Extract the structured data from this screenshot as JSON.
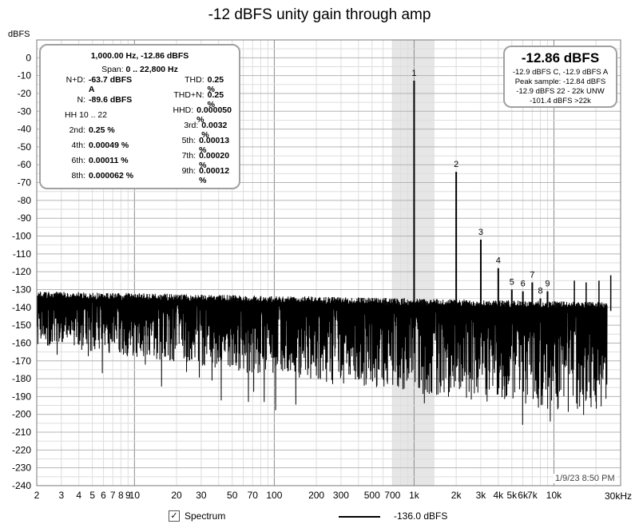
{
  "chart_data": {
    "type": "line",
    "title": "-12 dBFS unity gain through amp",
    "ylabel": "dBFS",
    "xunit": "30kHz",
    "xscale": "log",
    "xlim": [
      2,
      30000
    ],
    "ylim": [
      -240,
      10
    ],
    "grid": true,
    "yticks": [
      0,
      -10,
      -20,
      -30,
      -40,
      -50,
      -60,
      -70,
      -80,
      -90,
      -100,
      -110,
      -120,
      -130,
      -140,
      -150,
      -160,
      -170,
      -180,
      -190,
      -200,
      -210,
      -220,
      -230,
      -240
    ],
    "xticks": [
      {
        "v": 2,
        "label": "2"
      },
      {
        "v": 3,
        "label": "3"
      },
      {
        "v": 4,
        "label": "4"
      },
      {
        "v": 5,
        "label": "5"
      },
      {
        "v": 6,
        "label": "6"
      },
      {
        "v": 7,
        "label": "7"
      },
      {
        "v": 8,
        "label": "8"
      },
      {
        "v": 9,
        "label": "9"
      },
      {
        "v": 10,
        "label": "10"
      },
      {
        "v": 20,
        "label": "20"
      },
      {
        "v": 30,
        "label": "30"
      },
      {
        "v": 50,
        "label": "50"
      },
      {
        "v": 70,
        "label": "70"
      },
      {
        "v": 100,
        "label": "100"
      },
      {
        "v": 200,
        "label": "200"
      },
      {
        "v": 300,
        "label": "300"
      },
      {
        "v": 500,
        "label": "500"
      },
      {
        "v": 700,
        "label": "700"
      },
      {
        "v": 1000,
        "label": "1k"
      },
      {
        "v": 2000,
        "label": "2k"
      },
      {
        "v": 3000,
        "label": "3k"
      },
      {
        "v": 4000,
        "label": "4k"
      },
      {
        "v": 5000,
        "label": "5k"
      },
      {
        "v": 6000,
        "label": "6k"
      },
      {
        "v": 7000,
        "label": "7k"
      },
      {
        "v": 10000,
        "label": "10k"
      }
    ],
    "highlight_band": [
      700,
      1400
    ],
    "harmonics": [
      {
        "n": "1",
        "freq": 1000,
        "db": -12.86
      },
      {
        "n": "2",
        "freq": 2000,
        "db": -64
      },
      {
        "n": "3",
        "freq": 3000,
        "db": -102
      },
      {
        "n": "4",
        "freq": 4000,
        "db": -118
      },
      {
        "n": "5",
        "freq": 5000,
        "db": -130
      },
      {
        "n": "6",
        "freq": 6000,
        "db": -131
      },
      {
        "n": "7",
        "freq": 7000,
        "db": -126
      },
      {
        "n": "8",
        "freq": 8000,
        "db": -135
      },
      {
        "n": "9",
        "freq": 9000,
        "db": -131
      }
    ],
    "spurs": [
      {
        "freq": 14000,
        "db": -125
      },
      {
        "freq": 17000,
        "db": -126
      },
      {
        "freq": 21000,
        "db": -125
      },
      {
        "freq": 25500,
        "db": -122
      }
    ],
    "noise_floor": {
      "low_freq_db": -136,
      "high_freq_db": -142
    }
  },
  "stats": {
    "header": "1,000.00 Hz, -12.86 dBFS",
    "span_label": "Span:",
    "span_value": "0 .. 22,800 Hz",
    "rows": [
      [
        {
          "label": "N+D:",
          "value": "-63.7 dBFS A"
        },
        {
          "label": "THD:",
          "value": "0.25 %"
        }
      ],
      [
        {
          "label": "N:",
          "value": "-89.6 dBFS"
        },
        {
          "label": "THD+N:",
          "value": "0.25 %"
        }
      ],
      [
        {
          "label": "HH 10 .. 22",
          "value": ""
        },
        {
          "label": "HHD:",
          "value": "0.000050 %"
        }
      ],
      [
        {
          "label": "2nd:",
          "value": "0.25 %"
        },
        {
          "label": "3rd:",
          "value": "0.0032 %"
        }
      ],
      [
        {
          "label": "4th:",
          "value": "0.00049 %"
        },
        {
          "label": "5th:",
          "value": "0.00013 %"
        }
      ],
      [
        {
          "label": "6th:",
          "value": "0.00011 %"
        },
        {
          "label": "7th:",
          "value": "0.00020 %"
        }
      ],
      [
        {
          "label": "8th:",
          "value": "0.000062 %"
        },
        {
          "label": "9th:",
          "value": "0.00012 %"
        }
      ]
    ]
  },
  "level": {
    "big": "-12.86 dBFS",
    "line1": "-12.9 dBFS C, -12.9 dBFS A",
    "line2": "Peak sample: -12.84 dBFS",
    "line3": "-12.9 dBFS 22 - 22k UNW",
    "line4": "-101.4 dBFS >22k"
  },
  "timestamp": "1/9/23 8:50 PM",
  "legend": {
    "checkbox_mark": "✓",
    "spectrum_label": "Spectrum",
    "value": "-136.0 dBFS"
  },
  "colors": {
    "trace": "#000000",
    "grid_major": "#b4b4b4",
    "grid_minor": "#dedede",
    "band": "#e6e6e6"
  }
}
